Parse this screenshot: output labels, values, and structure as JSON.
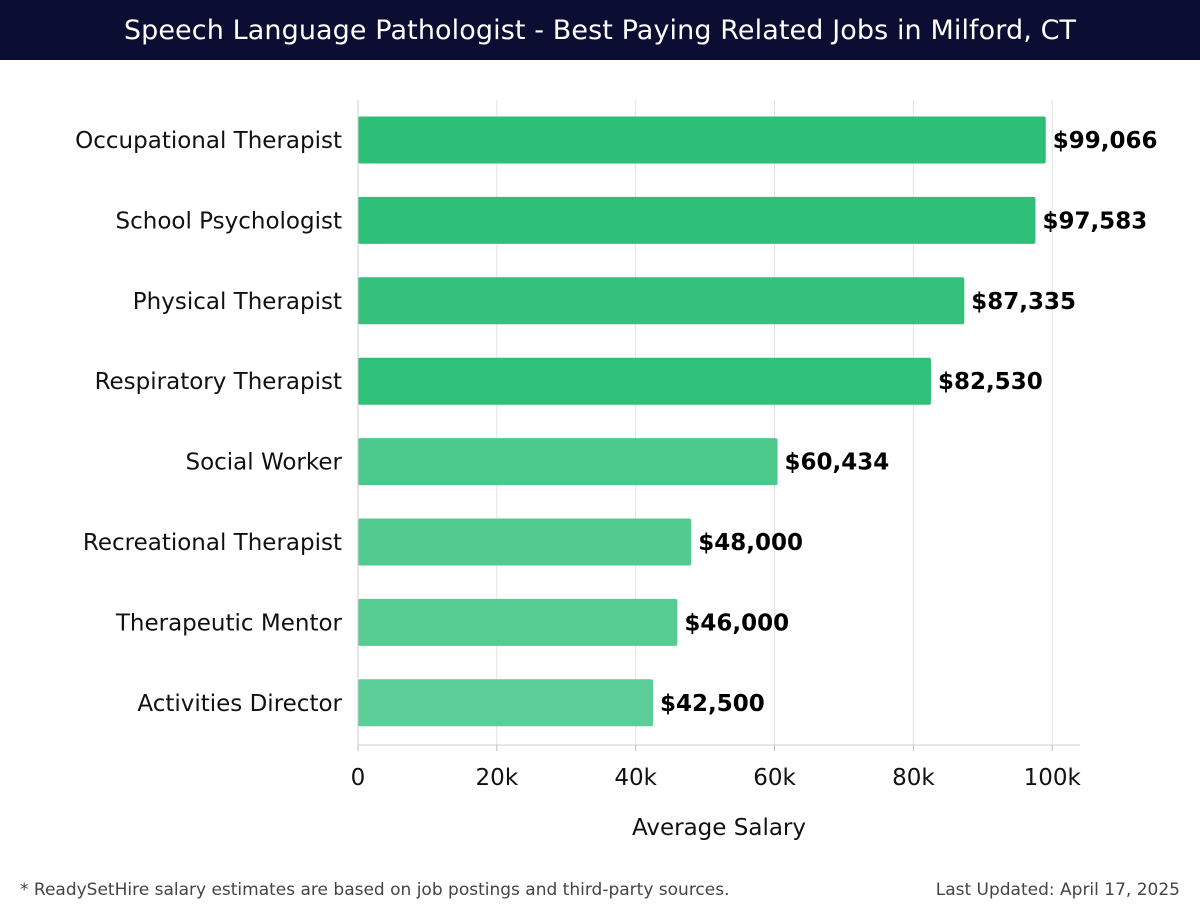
{
  "header": {
    "title": "Speech Language Pathologist - Best Paying Related Jobs in Milford, CT",
    "background": "#0b0d33"
  },
  "footer": {
    "note": "* ReadySetHire salary estimates are based on job postings and third-party sources.",
    "updated": "Last Updated: April 17, 2025"
  },
  "chart_data": {
    "type": "bar",
    "orientation": "horizontal",
    "categories": [
      "Occupational Therapist",
      "School Psychologist",
      "Physical Therapist",
      "Respiratory Therapist",
      "Social Worker",
      "Recreational Therapist",
      "Therapeutic Mentor",
      "Activities Director"
    ],
    "values": [
      99066,
      97583,
      87335,
      82530,
      60434,
      48000,
      46000,
      42500
    ],
    "value_labels": [
      "$99,066",
      "$97,583",
      "$87,335",
      "$82,530",
      "$60,434",
      "$48,000",
      "$46,000",
      "$42,500"
    ],
    "bar_colors": [
      "#2dbf77",
      "#2ec078",
      "#33c17b",
      "#2fc079",
      "#4bc98c",
      "#52cb91",
      "#56cc93",
      "#5ace96"
    ],
    "xlabel": "Average Salary",
    "ylabel": "",
    "xlim": [
      0,
      104000
    ],
    "xticks": [
      0,
      20000,
      40000,
      60000,
      80000,
      100000
    ],
    "xtick_labels": [
      "0",
      "20k",
      "40k",
      "60k",
      "80k",
      "100k"
    ],
    "grid": true
  }
}
